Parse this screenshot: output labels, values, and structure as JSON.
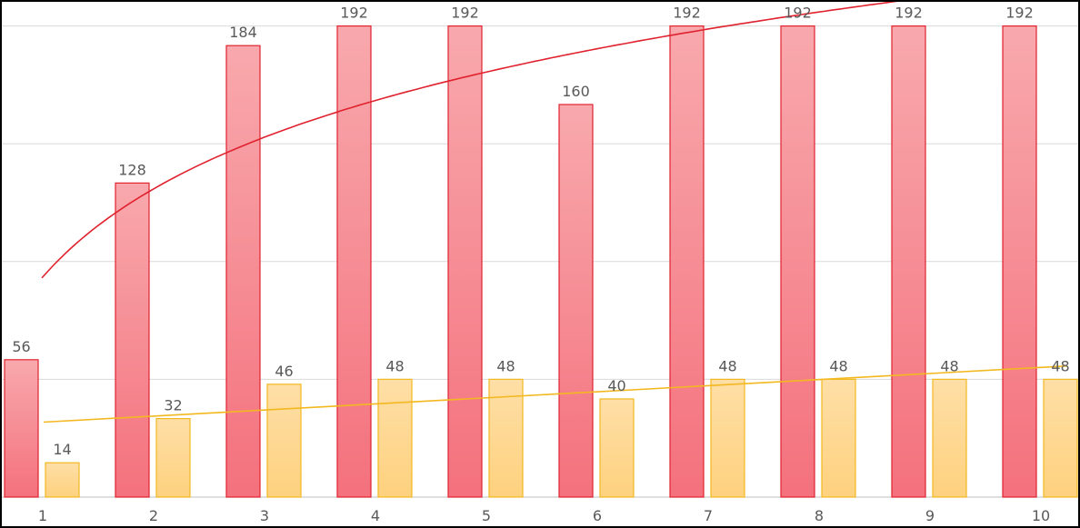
{
  "chart_data": {
    "type": "bar",
    "categories": [
      "1",
      "2",
      "3",
      "4",
      "5",
      "6",
      "7",
      "8",
      "9",
      "10"
    ],
    "series": [
      {
        "values": [
          56,
          128,
          184,
          192,
          192,
          160,
          192,
          192,
          192,
          192
        ],
        "color": "#f4717d",
        "color_light": "#f8a9ad",
        "border_color": "#e0222f",
        "trendline": "logarithmic",
        "trendline_color": "#e0222f"
      },
      {
        "values": [
          14,
          32,
          46,
          48,
          48,
          40,
          48,
          48,
          48,
          48
        ],
        "color": "#fdd17e",
        "color_light": "#ffdfa7",
        "border_color": "#f3b820",
        "trendline": "linear",
        "trendline_color": "#f3b820"
      }
    ],
    "ylim": [
      0,
      240
    ],
    "y_gridline_step": 48,
    "grid": true,
    "data_labels": true,
    "legend": "none",
    "title": "",
    "xlabel": "",
    "ylabel": ""
  }
}
